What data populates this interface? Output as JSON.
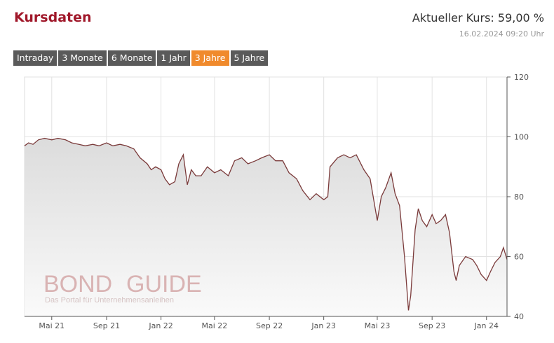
{
  "header": {
    "title": "Kursdaten",
    "price_text": "Aktueller Kurs: 59,00 %",
    "timestamp": "16.02.2024 09:20 Uhr"
  },
  "tabs": [
    {
      "label": "Intraday",
      "active": false
    },
    {
      "label": "3 Monate",
      "active": false
    },
    {
      "label": "6 Monate",
      "active": false
    },
    {
      "label": "1 Jahr",
      "active": false
    },
    {
      "label": "3 Jahre",
      "active": true
    },
    {
      "label": "5 Jahre",
      "active": false
    }
  ],
  "watermark": {
    "brand_1": "BOND",
    "brand_2": "GUIDE",
    "tagline": "Das Portal für Unternehmensanleihen"
  },
  "colors": {
    "brand": "#a0182a",
    "tab_bg": "#5a5a5a",
    "tab_active": "#f08a2c",
    "line": "#7a3a3a"
  },
  "chart_data": {
    "type": "area",
    "title": "",
    "xlabel": "",
    "ylabel": "",
    "ylim": [
      40,
      120
    ],
    "yticks": [
      40,
      60,
      80,
      100,
      120
    ],
    "xlim": [
      "2021-03-01",
      "2024-02-16"
    ],
    "xticks": [
      {
        "date": "2021-05-01",
        "label": "Mai 21"
      },
      {
        "date": "2021-09-01",
        "label": "Sep 21"
      },
      {
        "date": "2022-01-01",
        "label": "Jan 22"
      },
      {
        "date": "2022-05-01",
        "label": "Mai 22"
      },
      {
        "date": "2022-09-01",
        "label": "Sep 22"
      },
      {
        "date": "2023-01-01",
        "label": "Jan 23"
      },
      {
        "date": "2023-05-01",
        "label": "Mai 23"
      },
      {
        "date": "2023-09-01",
        "label": "Sep 23"
      },
      {
        "date": "2024-01-01",
        "label": "Jan 24"
      }
    ],
    "grid": true,
    "y_axis_position": "right",
    "series": [
      {
        "values": [
          [
            "2021-03-01",
            97
          ],
          [
            "2021-03-10",
            98
          ],
          [
            "2021-03-20",
            97.5
          ],
          [
            "2021-04-01",
            99
          ],
          [
            "2021-04-15",
            99.5
          ],
          [
            "2021-05-01",
            99
          ],
          [
            "2021-05-15",
            99.5
          ],
          [
            "2021-06-01",
            99
          ],
          [
            "2021-06-15",
            98
          ],
          [
            "2021-07-01",
            97.5
          ],
          [
            "2021-07-15",
            97
          ],
          [
            "2021-08-01",
            97.5
          ],
          [
            "2021-08-15",
            97
          ],
          [
            "2021-09-01",
            98
          ],
          [
            "2021-09-15",
            97
          ],
          [
            "2021-10-01",
            97.5
          ],
          [
            "2021-10-15",
            97
          ],
          [
            "2021-11-01",
            96
          ],
          [
            "2021-11-15",
            93
          ],
          [
            "2021-12-01",
            91
          ],
          [
            "2021-12-10",
            89
          ],
          [
            "2021-12-20",
            90
          ],
          [
            "2022-01-01",
            89
          ],
          [
            "2022-01-10",
            86
          ],
          [
            "2022-01-20",
            84
          ],
          [
            "2022-02-01",
            85
          ],
          [
            "2022-02-10",
            91
          ],
          [
            "2022-02-20",
            94
          ],
          [
            "2022-03-01",
            84
          ],
          [
            "2022-03-10",
            89
          ],
          [
            "2022-03-20",
            87
          ],
          [
            "2022-04-01",
            87
          ],
          [
            "2022-04-15",
            90
          ],
          [
            "2022-05-01",
            88
          ],
          [
            "2022-05-15",
            89
          ],
          [
            "2022-06-01",
            87
          ],
          [
            "2022-06-15",
            92
          ],
          [
            "2022-07-01",
            93
          ],
          [
            "2022-07-15",
            91
          ],
          [
            "2022-08-01",
            92
          ],
          [
            "2022-08-15",
            93
          ],
          [
            "2022-09-01",
            94
          ],
          [
            "2022-09-15",
            92
          ],
          [
            "2022-10-01",
            92
          ],
          [
            "2022-10-15",
            88
          ],
          [
            "2022-11-01",
            86
          ],
          [
            "2022-11-15",
            82
          ],
          [
            "2022-12-01",
            79
          ],
          [
            "2022-12-15",
            81
          ],
          [
            "2023-01-01",
            79
          ],
          [
            "2023-01-10",
            80
          ],
          [
            "2023-01-15",
            90
          ],
          [
            "2023-02-01",
            93
          ],
          [
            "2023-02-15",
            94
          ],
          [
            "2023-03-01",
            93
          ],
          [
            "2023-03-15",
            94
          ],
          [
            "2023-04-01",
            89
          ],
          [
            "2023-04-15",
            86
          ],
          [
            "2023-05-01",
            72
          ],
          [
            "2023-05-10",
            80
          ],
          [
            "2023-05-20",
            83
          ],
          [
            "2023-06-01",
            88
          ],
          [
            "2023-06-10",
            81
          ],
          [
            "2023-06-20",
            77
          ],
          [
            "2023-07-01",
            60
          ],
          [
            "2023-07-10",
            42
          ],
          [
            "2023-07-15",
            47
          ],
          [
            "2023-07-25",
            69
          ],
          [
            "2023-08-01",
            76
          ],
          [
            "2023-08-10",
            72
          ],
          [
            "2023-08-20",
            70
          ],
          [
            "2023-09-01",
            74
          ],
          [
            "2023-09-10",
            71
          ],
          [
            "2023-09-20",
            72
          ],
          [
            "2023-10-01",
            74
          ],
          [
            "2023-10-10",
            68
          ],
          [
            "2023-10-20",
            55
          ],
          [
            "2023-10-25",
            52
          ],
          [
            "2023-11-01",
            57
          ],
          [
            "2023-11-15",
            60
          ],
          [
            "2023-12-01",
            59
          ],
          [
            "2023-12-10",
            57
          ],
          [
            "2023-12-20",
            54
          ],
          [
            "2024-01-01",
            52
          ],
          [
            "2024-01-10",
            55
          ],
          [
            "2024-01-20",
            58
          ],
          [
            "2024-02-01",
            60
          ],
          [
            "2024-02-08",
            63
          ],
          [
            "2024-02-16",
            59
          ]
        ]
      }
    ]
  }
}
